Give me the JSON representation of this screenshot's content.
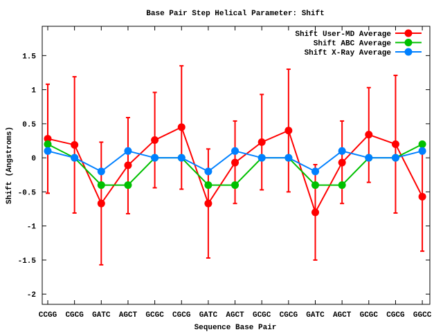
{
  "chart_data": {
    "type": "line",
    "title": "Base Pair Step Helical Parameter: Shift",
    "xlabel": "Sequence Base Pair",
    "ylabel": "Shift (Angstroms)",
    "categories": [
      "CCGG",
      "CGCG",
      "GATC",
      "AGCT",
      "GCGC",
      "CGCG",
      "GATC",
      "AGCT",
      "GCGC",
      "CGCG",
      "GATC",
      "AGCT",
      "GCGC",
      "CGCG",
      "GGCC"
    ],
    "ylim": [
      -2.15,
      1.93
    ],
    "yticks": [
      -2,
      -1.5,
      -1,
      -0.5,
      0,
      0.5,
      1,
      1.5
    ],
    "ytick_labels": [
      "-2",
      "-1.5",
      "-1",
      "-0.5",
      "0",
      "0.5",
      "1",
      "1.5"
    ],
    "grid": false,
    "legend_position": "top-right",
    "series": [
      {
        "name": "Shift User-MD Average",
        "color": "#ff0000",
        "values": [
          0.28,
          0.19,
          -0.67,
          -0.11,
          0.26,
          0.45,
          -0.67,
          -0.07,
          0.23,
          0.4,
          -0.8,
          -0.07,
          0.34,
          0.2,
          -0.57
        ],
        "err_high": [
          1.08,
          1.19,
          0.23,
          0.59,
          0.96,
          1.35,
          0.13,
          0.54,
          0.93,
          1.3,
          -0.1,
          0.54,
          1.03,
          1.21,
          0.23
        ],
        "err_low": [
          -0.52,
          -0.81,
          -1.57,
          -0.82,
          -0.44,
          -0.46,
          -1.47,
          -0.67,
          -0.47,
          -0.5,
          -1.5,
          -0.67,
          -0.36,
          -0.81,
          -1.37
        ]
      },
      {
        "name": "Shift ABC Average",
        "color": "#00c000",
        "values": [
          0.2,
          0,
          -0.4,
          -0.4,
          0,
          0,
          -0.4,
          -0.4,
          0,
          0,
          -0.4,
          -0.4,
          0,
          0,
          0.2
        ]
      },
      {
        "name": "Shift X-Ray Average",
        "color": "#0080ff",
        "values": [
          0.1,
          0,
          -0.2,
          0.1,
          0,
          0,
          -0.2,
          0.1,
          0,
          0,
          -0.2,
          0.1,
          0,
          0,
          0.1
        ]
      }
    ]
  }
}
